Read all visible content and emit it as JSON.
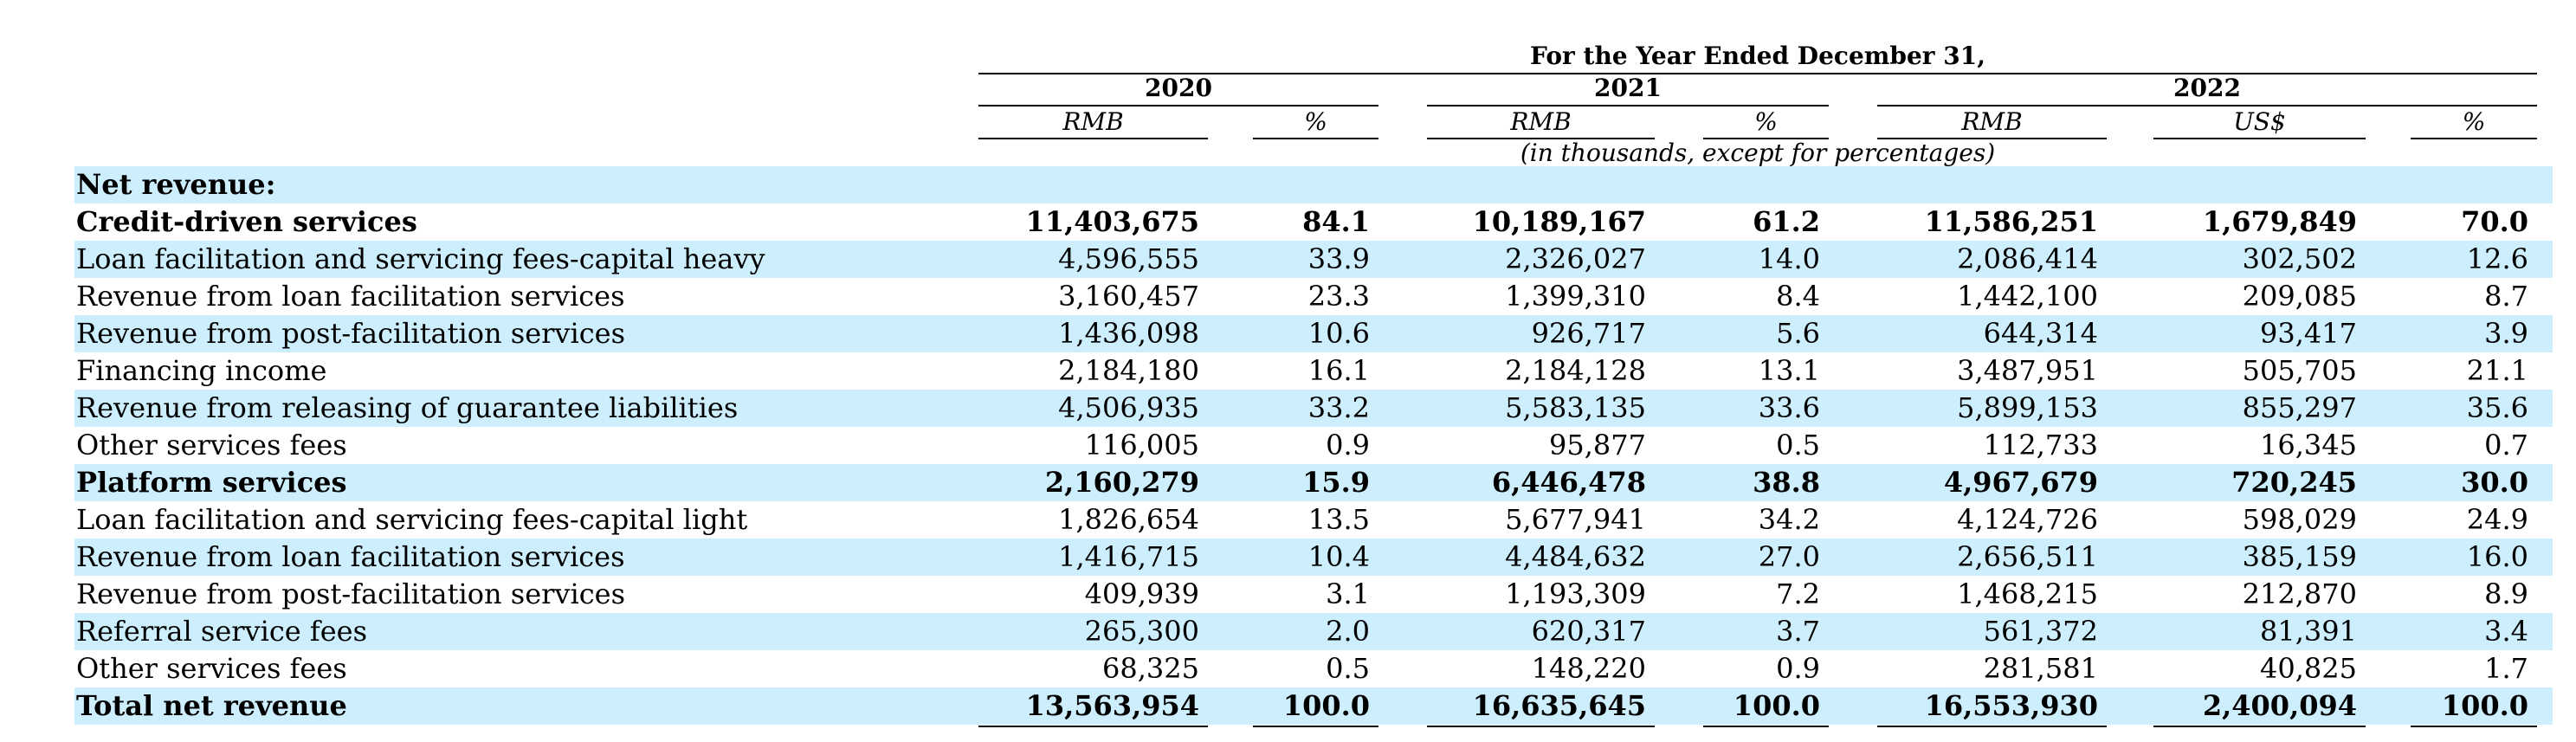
{
  "header": {
    "period_title": "For the Year Ended December 31,",
    "years": [
      "2020",
      "2021",
      "2022"
    ],
    "units": [
      "RMB",
      "%",
      "RMB",
      "%",
      "RMB",
      "US$",
      "%"
    ],
    "note": "(in thousands, except for percentages)"
  },
  "rows": [
    {
      "label": "Net revenue:",
      "bold": true,
      "values": [
        "",
        "",
        "",
        "",
        "",
        "",
        ""
      ]
    },
    {
      "label": "Credit-driven services",
      "bold": true,
      "values": [
        "11,403,675",
        "84.1",
        "10,189,167",
        "61.2",
        "11,586,251",
        "1,679,849",
        "70.0"
      ]
    },
    {
      "label": "Loan facilitation and servicing fees-capital heavy",
      "bold": false,
      "values": [
        "4,596,555",
        "33.9",
        "2,326,027",
        "14.0",
        "2,086,414",
        "302,502",
        "12.6"
      ]
    },
    {
      "label": "Revenue from loan facilitation services",
      "bold": false,
      "values": [
        "3,160,457",
        "23.3",
        "1,399,310",
        "8.4",
        "1,442,100",
        "209,085",
        "8.7"
      ]
    },
    {
      "label": "Revenue from post-facilitation services",
      "bold": false,
      "values": [
        "1,436,098",
        "10.6",
        "926,717",
        "5.6",
        "644,314",
        "93,417",
        "3.9"
      ]
    },
    {
      "label": "Financing income",
      "bold": false,
      "values": [
        "2,184,180",
        "16.1",
        "2,184,128",
        "13.1",
        "3,487,951",
        "505,705",
        "21.1"
      ]
    },
    {
      "label": "Revenue from releasing of guarantee liabilities",
      "bold": false,
      "values": [
        "4,506,935",
        "33.2",
        "5,583,135",
        "33.6",
        "5,899,153",
        "855,297",
        "35.6"
      ]
    },
    {
      "label": "Other services fees",
      "bold": false,
      "values": [
        "116,005",
        "0.9",
        "95,877",
        "0.5",
        "112,733",
        "16,345",
        "0.7"
      ]
    },
    {
      "label": "Platform services",
      "bold": true,
      "values": [
        "2,160,279",
        "15.9",
        "6,446,478",
        "38.8",
        "4,967,679",
        "720,245",
        "30.0"
      ]
    },
    {
      "label": "Loan facilitation and servicing fees-capital light",
      "bold": false,
      "values": [
        "1,826,654",
        "13.5",
        "5,677,941",
        "34.2",
        "4,124,726",
        "598,029",
        "24.9"
      ]
    },
    {
      "label": "Revenue from loan facilitation services",
      "bold": false,
      "values": [
        "1,416,715",
        "10.4",
        "4,484,632",
        "27.0",
        "2,656,511",
        "385,159",
        "16.0"
      ]
    },
    {
      "label": "Revenue from post-facilitation services",
      "bold": false,
      "values": [
        "409,939",
        "3.1",
        "1,193,309",
        "7.2",
        "1,468,215",
        "212,870",
        "8.9"
      ]
    },
    {
      "label": "Referral service fees",
      "bold": false,
      "values": [
        "265,300",
        "2.0",
        "620,317",
        "3.7",
        "561,372",
        "81,391",
        "3.4"
      ]
    },
    {
      "label": "Other services fees",
      "bold": false,
      "values": [
        "68,325",
        "0.5",
        "148,220",
        "0.9",
        "281,581",
        "40,825",
        "1.7"
      ]
    },
    {
      "label": "Total net revenue",
      "bold": true,
      "values": [
        "13,563,954",
        "100.0",
        "16,635,645",
        "100.0",
        "16,553,930",
        "2,400,094",
        "100.0"
      ]
    }
  ],
  "colors": {
    "shade": "#cdeefd",
    "text": "#000000"
  }
}
